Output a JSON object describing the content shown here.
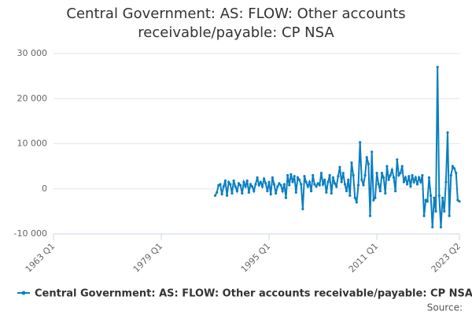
{
  "chart_data": {
    "type": "line",
    "title": "Central Government: AS: FLOW: Other accounts receivable/payable: CP NSA",
    "x": [
      "1987 Q1",
      "1987 Q2",
      "1987 Q3",
      "1987 Q4",
      "1988 Q1",
      "1988 Q2",
      "1988 Q3",
      "1988 Q4",
      "1989 Q1",
      "1989 Q2",
      "1989 Q3",
      "1989 Q4",
      "1990 Q1",
      "1990 Q2",
      "1990 Q3",
      "1990 Q4",
      "1991 Q1",
      "1991 Q2",
      "1991 Q3",
      "1991 Q4",
      "1992 Q1",
      "1992 Q2",
      "1992 Q3",
      "1992 Q4",
      "1993 Q1",
      "1993 Q2",
      "1993 Q3",
      "1993 Q4",
      "1994 Q1",
      "1994 Q2",
      "1994 Q3",
      "1994 Q4",
      "1995 Q1",
      "1995 Q2",
      "1995 Q3",
      "1995 Q4",
      "1996 Q1",
      "1996 Q2",
      "1996 Q3",
      "1996 Q4",
      "1997 Q1",
      "1997 Q2",
      "1997 Q3",
      "1997 Q4",
      "1998 Q1",
      "1998 Q2",
      "1998 Q3",
      "1998 Q4",
      "1999 Q1",
      "1999 Q2",
      "1999 Q3",
      "1999 Q4",
      "2000 Q1",
      "2000 Q2",
      "2000 Q3",
      "2000 Q4",
      "2001 Q1",
      "2001 Q2",
      "2001 Q3",
      "2001 Q4",
      "2002 Q1",
      "2002 Q2",
      "2002 Q3",
      "2002 Q4",
      "2003 Q1",
      "2003 Q2",
      "2003 Q3",
      "2003 Q4",
      "2004 Q1",
      "2004 Q2",
      "2004 Q3",
      "2004 Q4",
      "2005 Q1",
      "2005 Q2",
      "2005 Q3",
      "2005 Q4",
      "2006 Q1",
      "2006 Q2",
      "2006 Q3",
      "2006 Q4",
      "2007 Q1",
      "2007 Q2",
      "2007 Q3",
      "2007 Q4",
      "2008 Q1",
      "2008 Q2",
      "2008 Q3",
      "2008 Q4",
      "2009 Q1",
      "2009 Q2",
      "2009 Q3",
      "2009 Q4",
      "2010 Q1",
      "2010 Q2",
      "2010 Q3",
      "2010 Q4",
      "2011 Q1",
      "2011 Q2",
      "2011 Q3",
      "2011 Q4",
      "2012 Q1",
      "2012 Q2",
      "2012 Q3",
      "2012 Q4",
      "2013 Q1",
      "2013 Q2",
      "2013 Q3",
      "2013 Q4",
      "2014 Q1",
      "2014 Q2",
      "2014 Q3",
      "2014 Q4",
      "2015 Q1",
      "2015 Q2",
      "2015 Q3",
      "2015 Q4",
      "2016 Q1",
      "2016 Q2",
      "2016 Q3",
      "2016 Q4",
      "2017 Q1",
      "2017 Q2",
      "2017 Q3",
      "2017 Q4",
      "2018 Q1",
      "2018 Q2",
      "2018 Q3",
      "2018 Q4",
      "2019 Q1",
      "2019 Q2",
      "2019 Q3",
      "2019 Q4",
      "2020 Q1",
      "2020 Q2",
      "2020 Q3",
      "2020 Q4",
      "2021 Q1",
      "2021 Q2",
      "2021 Q3",
      "2021 Q4",
      "2022 Q1",
      "2022 Q2",
      "2022 Q3",
      "2022 Q4",
      "2023 Q1",
      "2023 Q2"
    ],
    "series": [
      {
        "name": "Central Government: AS: FLOW: Other accounts receivable/payable: CP NSA",
        "color": "#0a7fc1",
        "values": [
          -1500,
          -800,
          800,
          1000,
          -1200,
          500,
          1800,
          -1500,
          1500,
          1000,
          -1000,
          1800,
          500,
          -500,
          1200,
          800,
          -1000,
          1500,
          500,
          1800,
          -800,
          1000,
          500,
          -500,
          1000,
          2500,
          800,
          1500,
          500,
          2200,
          1200,
          -500,
          1500,
          -1200,
          2500,
          1000,
          -1000,
          500,
          1200,
          800,
          -500,
          1000,
          -2000,
          3000,
          800,
          3200,
          1500,
          2800,
          -800,
          2500,
          2000,
          1000,
          -4500,
          2800,
          1500,
          500,
          1500,
          -500,
          3000,
          1000,
          500,
          1200,
          800,
          3500,
          1000,
          2000,
          -800,
          1500,
          3000,
          -1000,
          2500,
          1200,
          500,
          2800,
          4800,
          1500,
          3500,
          1000,
          -500,
          2000,
          -1500,
          5800,
          3000,
          -2000,
          -3000,
          800,
          10300,
          2000,
          800,
          3000,
          7000,
          5500,
          -6000,
          8200,
          -2500,
          -2000,
          3500,
          1000,
          -500,
          3500,
          2500,
          -1000,
          5000,
          2000,
          3000,
          4200,
          2500,
          -500,
          6500,
          3000,
          3500,
          5000,
          1500,
          2500,
          1000,
          2800,
          500,
          3000,
          1500,
          2500,
          1000,
          2500,
          1500,
          3000,
          -6000,
          -2500,
          -2800,
          2500,
          -1500,
          -8500,
          -2000,
          -5000,
          27000,
          -1500,
          -8500,
          -2000,
          -5000,
          1500,
          12500,
          -6000,
          3000,
          5000,
          4500,
          3500,
          -2500,
          -2800
        ]
      }
    ],
    "xlim": [
      "1963 Q1",
      "2023 Q2"
    ],
    "xticks": [
      "1963 Q1",
      "1979 Q1",
      "1995 Q1",
      "2011 Q1",
      "2023 Q2"
    ],
    "ylim": [
      -10000,
      30000
    ],
    "yticks": [
      {
        "value": -10000,
        "label": "-10 000"
      },
      0,
      {
        "value": 10000,
        "label": "10 000"
      },
      {
        "value": 20000,
        "label": "20 000"
      },
      {
        "value": 30000,
        "label": "30 000"
      }
    ],
    "grid": true,
    "source": "Source:"
  }
}
